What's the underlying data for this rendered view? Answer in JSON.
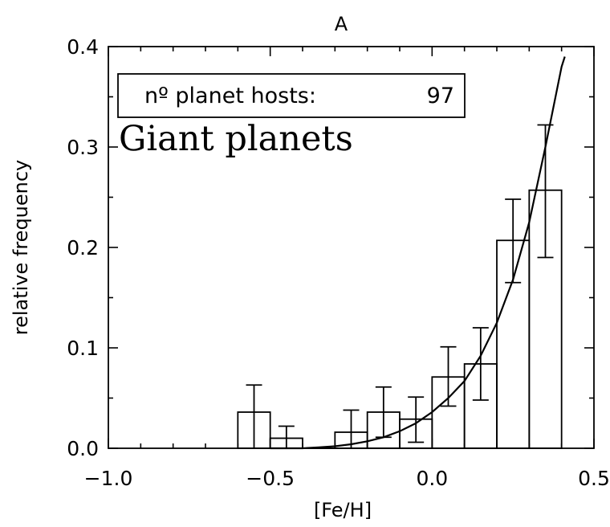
{
  "chart_data": {
    "type": "bar",
    "title": "A",
    "xlabel": "[Fe/H]",
    "ylabel": "relative frequency",
    "xlim": [
      -1.0,
      0.5
    ],
    "ylim": [
      0.0,
      0.4
    ],
    "xticks": [
      "−1.0",
      "−0.5",
      "0.0",
      "0.5"
    ],
    "yticks": [
      "0.0",
      "0.1",
      "0.2",
      "0.3",
      "0.4"
    ],
    "grid": false,
    "bins": [
      {
        "x0": -0.6,
        "x1": -0.5,
        "value": 0.036,
        "err_low": 0.0,
        "err_high": 0.063
      },
      {
        "x0": -0.5,
        "x1": -0.4,
        "value": 0.01,
        "err_low": 0.0,
        "err_high": 0.022
      },
      {
        "x0": -0.4,
        "x1": -0.3,
        "value": 0.0,
        "err_low": 0.0,
        "err_high": 0.0
      },
      {
        "x0": -0.3,
        "x1": -0.2,
        "value": 0.016,
        "err_low": 0.0,
        "err_high": 0.038
      },
      {
        "x0": -0.2,
        "x1": -0.1,
        "value": 0.036,
        "err_low": 0.011,
        "err_high": 0.061
      },
      {
        "x0": -0.1,
        "x1": 0.0,
        "value": 0.029,
        "err_low": 0.006,
        "err_high": 0.051
      },
      {
        "x0": 0.0,
        "x1": 0.1,
        "value": 0.071,
        "err_low": 0.042,
        "err_high": 0.101
      },
      {
        "x0": 0.1,
        "x1": 0.2,
        "value": 0.084,
        "err_low": 0.048,
        "err_high": 0.12
      },
      {
        "x0": 0.2,
        "x1": 0.3,
        "value": 0.207,
        "err_low": 0.165,
        "err_high": 0.248
      },
      {
        "x0": 0.3,
        "x1": 0.4,
        "value": 0.257,
        "err_low": 0.19,
        "err_high": 0.322
      }
    ],
    "fit_curve": {
      "x": [
        -0.5,
        -0.45,
        -0.4,
        -0.35,
        -0.3,
        -0.25,
        -0.2,
        -0.15,
        -0.1,
        -0.05,
        0.0,
        0.05,
        0.1,
        0.15,
        0.2,
        0.25,
        0.3,
        0.35,
        0.4,
        0.41
      ],
      "y": [
        0.0,
        0.0,
        0.0,
        0.001,
        0.002,
        0.004,
        0.007,
        0.011,
        0.017,
        0.025,
        0.036,
        0.05,
        0.067,
        0.092,
        0.125,
        0.168,
        0.225,
        0.3,
        0.38,
        0.39
      ]
    },
    "legend": {
      "label": "nº planet hosts:",
      "value": "97",
      "position": "top-left"
    },
    "annotation": "Giant planets"
  }
}
